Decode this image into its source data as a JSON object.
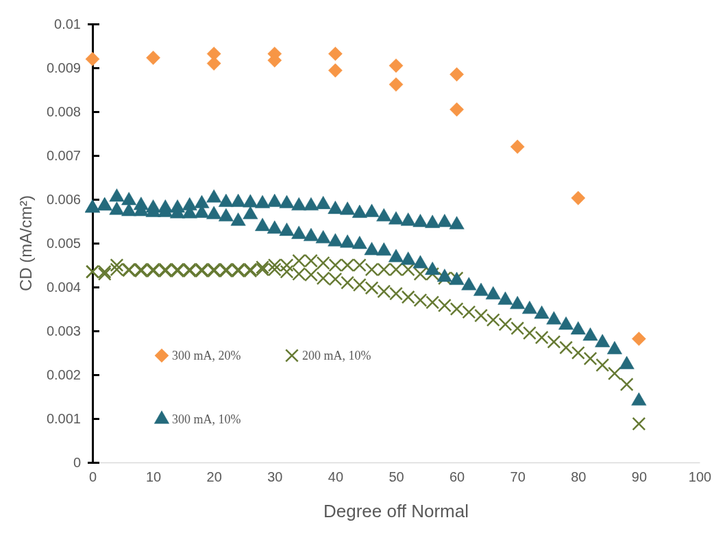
{
  "chart_data": {
    "type": "scatter",
    "xlabel": "Degree off Normal",
    "ylabel": "CD (mA/cm²)",
    "xlim": [
      0,
      100
    ],
    "xticks": [
      0,
      10,
      20,
      30,
      40,
      50,
      60,
      70,
      80,
      90,
      100
    ],
    "ylim": [
      0,
      0.01
    ],
    "yticks": [
      0,
      0.001,
      0.002,
      0.003,
      0.004,
      0.005,
      0.006,
      0.007,
      0.008,
      0.009,
      0.01
    ],
    "grid": false,
    "legend": "bottom left",
    "series": [
      {
        "name": "300 mA, 20%",
        "color": "#f79646",
        "marker": "diamond",
        "x": [
          0,
          10,
          20,
          20,
          30,
          30,
          40,
          40,
          50,
          50,
          60,
          60,
          70,
          80,
          90
        ],
        "values": [
          0.0092,
          0.00923,
          0.00932,
          0.0091,
          0.00932,
          0.00917,
          0.00932,
          0.00894,
          0.00905,
          0.00862,
          0.00885,
          0.00805,
          0.0072,
          0.00603,
          0.00282
        ]
      },
      {
        "name": "200 mA, 10%",
        "color": "#667a33",
        "marker": "cross",
        "x": [
          0,
          2,
          4,
          6,
          8,
          10,
          12,
          14,
          16,
          18,
          20,
          22,
          24,
          26,
          28,
          30,
          32,
          34,
          36,
          38,
          40,
          42,
          44,
          46,
          48,
          50,
          52,
          54,
          56,
          58,
          60,
          0,
          2,
          4,
          6,
          8,
          10,
          12,
          14,
          16,
          18,
          20,
          22,
          24,
          26,
          28,
          30,
          32,
          34,
          36,
          38,
          40,
          42,
          44,
          46,
          48,
          50,
          52,
          54,
          56,
          58,
          60,
          62,
          64,
          66,
          68,
          70,
          72,
          74,
          76,
          78,
          80,
          82,
          84,
          86,
          88,
          90
        ],
        "values": [
          0.00435,
          0.0043,
          0.0045,
          0.0044,
          0.0044,
          0.0044,
          0.0044,
          0.0044,
          0.0044,
          0.0044,
          0.0044,
          0.0044,
          0.0044,
          0.0044,
          0.00445,
          0.0045,
          0.0045,
          0.0046,
          0.0046,
          0.00455,
          0.0045,
          0.0045,
          0.0045,
          0.0044,
          0.0044,
          0.0044,
          0.0044,
          0.0043,
          0.0043,
          0.0042,
          0.0042,
          0.00435,
          0.00435,
          0.0044,
          0.00438,
          0.00437,
          0.00437,
          0.00437,
          0.00437,
          0.00437,
          0.00437,
          0.00437,
          0.00437,
          0.00437,
          0.00437,
          0.0044,
          0.0044,
          0.00435,
          0.0043,
          0.00428,
          0.0042,
          0.00418,
          0.0041,
          0.00405,
          0.00398,
          0.0039,
          0.00385,
          0.00377,
          0.0037,
          0.00365,
          0.00358,
          0.0035,
          0.00343,
          0.00335,
          0.00325,
          0.00315,
          0.00306,
          0.00295,
          0.00285,
          0.00275,
          0.00262,
          0.0025,
          0.00237,
          0.00222,
          0.00203,
          0.00178,
          0.00088
        ]
      },
      {
        "name": "300 mA, 10%",
        "color": "#246a7c",
        "marker": "triangle",
        "x": [
          0,
          2,
          4,
          6,
          8,
          10,
          12,
          14,
          16,
          18,
          20,
          22,
          24,
          26,
          28,
          30,
          32,
          34,
          36,
          38,
          40,
          42,
          44,
          46,
          48,
          50,
          52,
          54,
          56,
          58,
          60,
          0,
          2,
          4,
          6,
          8,
          10,
          12,
          14,
          16,
          18,
          20,
          22,
          24,
          26,
          28,
          30,
          32,
          34,
          36,
          38,
          40,
          42,
          44,
          46,
          48,
          50,
          52,
          54,
          56,
          58,
          60,
          62,
          64,
          66,
          68,
          70,
          72,
          74,
          76,
          78,
          80,
          82,
          84,
          86,
          88,
          90
        ],
        "values": [
          0.0058,
          0.00585,
          0.00605,
          0.00597,
          0.00586,
          0.0058,
          0.0058,
          0.0058,
          0.00585,
          0.0059,
          0.00603,
          0.00593,
          0.00593,
          0.00592,
          0.0059,
          0.00593,
          0.0059,
          0.00585,
          0.00585,
          0.00588,
          0.00577,
          0.00575,
          0.00568,
          0.0057,
          0.0056,
          0.00553,
          0.0055,
          0.00547,
          0.00545,
          0.00547,
          0.00542,
          0.0058,
          0.00585,
          0.00575,
          0.00572,
          0.00572,
          0.0057,
          0.0057,
          0.00567,
          0.00567,
          0.00568,
          0.00565,
          0.0056,
          0.0055,
          0.00565,
          0.00538,
          0.00532,
          0.00527,
          0.0052,
          0.00515,
          0.0051,
          0.00503,
          0.005,
          0.00497,
          0.00483,
          0.00482,
          0.00467,
          0.00461,
          0.00453,
          0.00438,
          0.00422,
          0.00415,
          0.00403,
          0.0039,
          0.00382,
          0.0037,
          0.0036,
          0.00349,
          0.00338,
          0.00325,
          0.00313,
          0.00302,
          0.00288,
          0.00273,
          0.00257,
          0.00223,
          0.0014
        ]
      }
    ]
  }
}
